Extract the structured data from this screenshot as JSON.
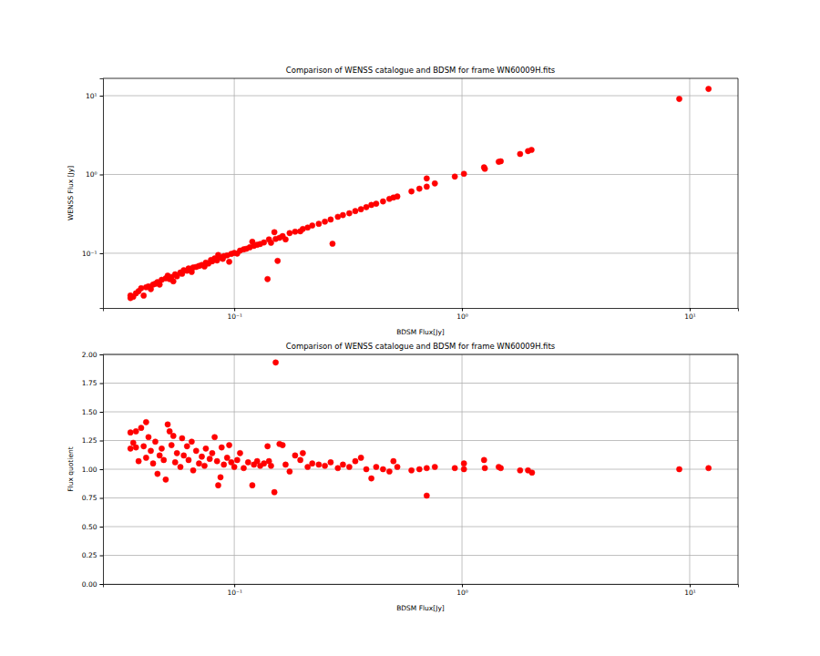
{
  "chart_data": [
    {
      "type": "scatter",
      "title": "Comparison of WENSS catalogue and BDSM for frame WN60009H.fits",
      "x_label": "BDSM Flux[Jy]",
      "y_label": "WENSS Flux [Jy]",
      "log": true,
      "grid": true,
      "color": "#ff0000",
      "marker": "circle",
      "xlim": [
        0.0265,
        16.3
      ],
      "xticks": [
        {
          "value": 0.1,
          "label": "10⁻¹"
        },
        {
          "value": 1,
          "label": "10⁰"
        },
        {
          "value": 10,
          "label": "10¹"
        }
      ],
      "ylim": [
        0.0202,
        16.6
      ],
      "yticks": [
        {
          "value": 0.1,
          "label": "10⁻¹"
        },
        {
          "value": 1,
          "label": "10⁰"
        },
        {
          "value": 10,
          "label": "10¹"
        }
      ],
      "x": [
        0.035,
        0.035,
        0.036,
        0.037,
        0.038,
        0.039,
        0.04,
        0.041,
        0.042,
        0.043,
        0.044,
        0.045,
        0.046,
        0.047,
        0.048,
        0.05,
        0.051,
        0.052,
        0.053,
        0.054,
        0.055,
        0.056,
        0.058,
        0.059,
        0.06,
        0.062,
        0.063,
        0.065,
        0.066,
        0.068,
        0.07,
        0.072,
        0.074,
        0.075,
        0.077,
        0.079,
        0.08,
        0.082,
        0.084,
        0.085,
        0.087,
        0.089,
        0.09,
        0.093,
        0.095,
        0.097,
        0.1,
        0.103,
        0.106,
        0.11,
        0.113,
        0.117,
        0.12,
        0.122,
        0.126,
        0.13,
        0.135,
        0.14,
        0.142,
        0.145,
        0.15,
        0.152,
        0.155,
        0.158,
        0.163,
        0.168,
        0.175,
        0.185,
        0.195,
        0.2,
        0.21,
        0.22,
        0.235,
        0.25,
        0.265,
        0.27,
        0.285,
        0.3,
        0.32,
        0.34,
        0.36,
        0.38,
        0.4,
        0.42,
        0.45,
        0.48,
        0.5,
        0.52,
        0.6,
        0.65,
        0.7,
        0.7,
        0.76,
        0.93,
        1.02,
        1.25,
        1.26,
        1.45,
        1.48,
        1.8,
        1.95,
        2.02,
        9.0,
        12.1
      ],
      "values": [
        0.029,
        0.027,
        0.028,
        0.031,
        0.033,
        0.036,
        0.029,
        0.037,
        0.038,
        0.035,
        0.04,
        0.041,
        0.043,
        0.04,
        0.046,
        0.048,
        0.052,
        0.047,
        0.05,
        0.044,
        0.054,
        0.051,
        0.057,
        0.055,
        0.061,
        0.06,
        0.064,
        0.058,
        0.066,
        0.067,
        0.069,
        0.071,
        0.068,
        0.076,
        0.074,
        0.082,
        0.079,
        0.086,
        0.081,
        0.095,
        0.088,
        0.085,
        0.092,
        0.094,
        0.078,
        0.098,
        0.101,
        0.099,
        0.108,
        0.112,
        0.114,
        0.119,
        0.14,
        0.124,
        0.128,
        0.131,
        0.137,
        0.047,
        0.15,
        0.136,
        0.185,
        0.152,
        0.08,
        0.157,
        0.165,
        0.15,
        0.18,
        0.188,
        0.19,
        0.203,
        0.212,
        0.225,
        0.236,
        0.252,
        0.268,
        0.132,
        0.29,
        0.305,
        0.322,
        0.343,
        0.362,
        0.385,
        0.41,
        0.425,
        0.455,
        0.49,
        0.51,
        0.525,
        0.61,
        0.66,
        0.89,
        0.7,
        0.77,
        0.94,
        1.02,
        1.23,
        1.18,
        1.45,
        1.47,
        1.82,
        1.98,
        2.05,
        9.1,
        12.2
      ]
    },
    {
      "type": "scatter",
      "title": "Comparison of WENSS catalogue and BDSM for frame WN60009H.fits",
      "x_label": "BDSM Flux[Jy]",
      "y_label": "Flux quotient",
      "log": "x",
      "grid": true,
      "color": "#ff0000",
      "marker": "circle",
      "xlim": [
        0.0265,
        16.3
      ],
      "xticks": [
        {
          "value": 0.1,
          "label": "10⁻¹"
        },
        {
          "value": 1,
          "label": "10⁰"
        },
        {
          "value": 10,
          "label": "10¹"
        }
      ],
      "ylim": [
        0,
        2
      ],
      "yticks": [
        {
          "value": 0,
          "label": "0.00"
        },
        0.25,
        {
          "value": 0.5,
          "label": "0.50"
        },
        0.75,
        {
          "value": 1,
          "label": "1.00"
        },
        1.25,
        {
          "value": 1.5,
          "label": "1.50"
        },
        1.75,
        {
          "value": 2,
          "label": "2.00"
        }
      ],
      "x": [
        0.035,
        0.035,
        0.036,
        0.037,
        0.037,
        0.038,
        0.039,
        0.04,
        0.041,
        0.041,
        0.042,
        0.043,
        0.044,
        0.045,
        0.046,
        0.047,
        0.048,
        0.049,
        0.05,
        0.051,
        0.052,
        0.053,
        0.054,
        0.055,
        0.056,
        0.058,
        0.059,
        0.06,
        0.062,
        0.063,
        0.065,
        0.066,
        0.068,
        0.07,
        0.072,
        0.074,
        0.075,
        0.078,
        0.08,
        0.082,
        0.084,
        0.085,
        0.087,
        0.088,
        0.09,
        0.093,
        0.095,
        0.097,
        0.1,
        0.103,
        0.106,
        0.11,
        0.115,
        0.12,
        0.122,
        0.126,
        0.13,
        0.135,
        0.14,
        0.142,
        0.145,
        0.15,
        0.152,
        0.158,
        0.163,
        0.168,
        0.175,
        0.185,
        0.195,
        0.2,
        0.21,
        0.22,
        0.235,
        0.25,
        0.265,
        0.285,
        0.3,
        0.32,
        0.34,
        0.36,
        0.38,
        0.4,
        0.42,
        0.45,
        0.48,
        0.5,
        0.52,
        0.6,
        0.65,
        0.7,
        0.7,
        0.76,
        0.93,
        1.02,
        1.02,
        1.25,
        1.26,
        1.45,
        1.48,
        1.8,
        1.95,
        2.03,
        9.0,
        12.1
      ],
      "values": [
        1.18,
        1.32,
        1.23,
        1.33,
        1.19,
        1.07,
        1.36,
        1.2,
        1.41,
        1.1,
        1.28,
        1.16,
        1.05,
        1.24,
        0.96,
        1.12,
        1.18,
        1.08,
        0.91,
        1.39,
        1.33,
        1.21,
        1.29,
        1.06,
        1.14,
        1.02,
        1.27,
        1.12,
        1.2,
        1.08,
        1.24,
        0.99,
        1.16,
        1.05,
        1.11,
        1.03,
        1.18,
        1.09,
        1.14,
        1.28,
        1.07,
        0.86,
        0.93,
        1.19,
        1.04,
        1.1,
        1.21,
        1.06,
        1.02,
        1.08,
        1.14,
        1.01,
        1.06,
        0.86,
        1.04,
        1.07,
        1.03,
        1.05,
        1.2,
        1.07,
        1.03,
        0.8,
        1.93,
        1.22,
        1.21,
        1.04,
        0.98,
        1.12,
        1.08,
        1.14,
        1.02,
        1.05,
        1.04,
        1.03,
        1.06,
        1.01,
        1.04,
        1.02,
        1.07,
        1.1,
        1.0,
        0.92,
        1.02,
        1.0,
        0.98,
        1.07,
        1.02,
        0.99,
        1.0,
        0.77,
        1.01,
        1.02,
        1.01,
        1.05,
        1.0,
        1.08,
        1.01,
        1.02,
        1.01,
        0.99,
        0.99,
        0.97,
        1.0,
        1.01
      ]
    }
  ]
}
